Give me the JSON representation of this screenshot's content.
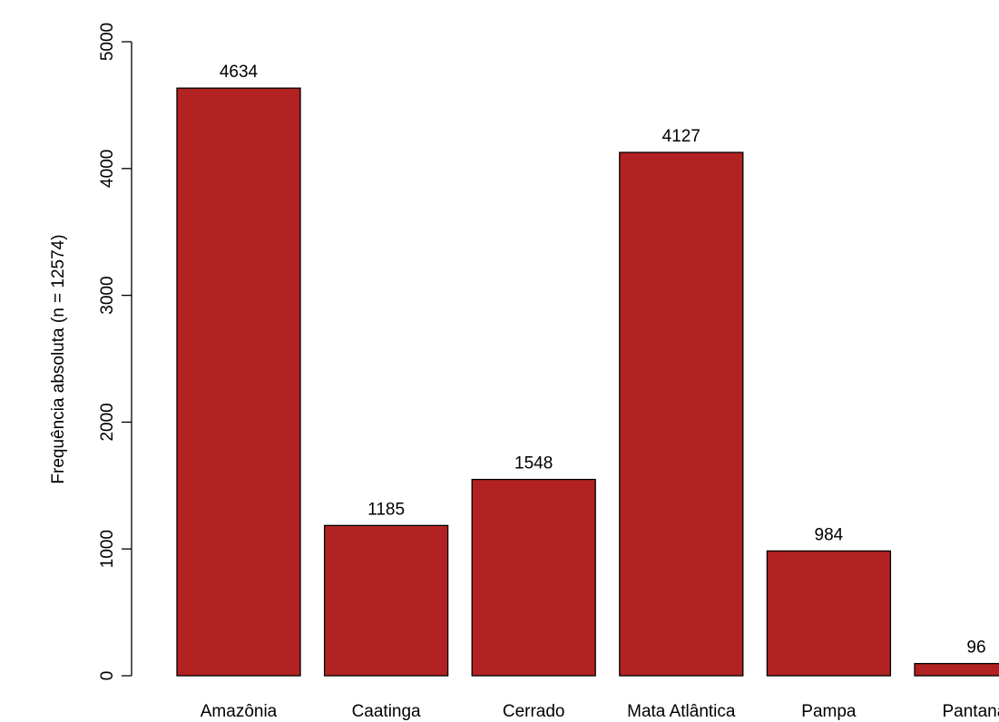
{
  "chart_data": {
    "type": "bar",
    "title": "",
    "xlabel": "",
    "ylabel": "Frequência absoluta (n = 12574)",
    "categories": [
      "Amazônia",
      "Caatinga",
      "Cerrado",
      "Mata Atlântica",
      "Pampa",
      "Pantanal"
    ],
    "values": [
      4634,
      1185,
      1548,
      4127,
      984,
      96
    ],
    "data_labels": [
      "4634",
      "1185",
      "1548",
      "4127",
      "984",
      "96"
    ],
    "ylim": [
      0,
      5000
    ],
    "yticks": [
      0,
      1000,
      2000,
      3000,
      4000,
      5000
    ],
    "ytick_labels": [
      "0",
      "1000",
      "2000",
      "3000",
      "4000",
      "5000"
    ],
    "grid": false,
    "legend": "none",
    "bar_color": "#b22222",
    "bar_edge_color": "#000000"
  }
}
